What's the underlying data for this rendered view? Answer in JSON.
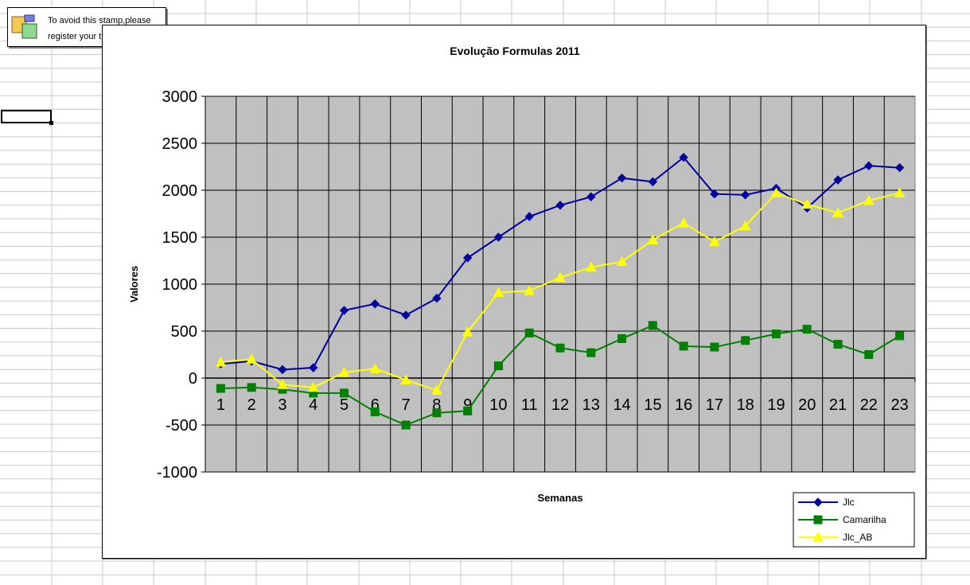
{
  "stamp": {
    "line1": "To avoid this stamp,please",
    "line2": "register your trial copy"
  },
  "colors": {
    "plot_background": "#c0c0c0",
    "sheet_grid": "#c8c8c8",
    "series_jlc": "#0000a0",
    "series_camarilha": "#008000",
    "series_jlc_ab": "#ffff00"
  },
  "chart_data": {
    "type": "line",
    "title": "Evolução Formulas 2011",
    "xlabel": "Semanas",
    "ylabel": "Valores",
    "ylim": [
      -1000,
      3000
    ],
    "yticks": [
      3000,
      2500,
      2000,
      1500,
      1000,
      500,
      0,
      -500,
      -1000
    ],
    "categories": [
      "1",
      "2",
      "3",
      "4",
      "5",
      "6",
      "7",
      "8",
      "9",
      "10",
      "11",
      "12",
      "13",
      "14",
      "15",
      "16",
      "17",
      "18",
      "19",
      "20",
      "21",
      "22",
      "23"
    ],
    "grid": true,
    "legend_position": "bottom-right",
    "series": [
      {
        "name": "Jlc",
        "marker": "diamond",
        "color": "#0000a0",
        "values": [
          150,
          180,
          90,
          110,
          720,
          790,
          670,
          850,
          1280,
          1500,
          1720,
          1840,
          1930,
          2130,
          2090,
          2350,
          1960,
          1950,
          2020,
          1810,
          2110,
          2260,
          2240
        ]
      },
      {
        "name": "Camarilha",
        "marker": "square",
        "color": "#008000",
        "values": [
          -110,
          -100,
          -120,
          -160,
          -160,
          -360,
          -500,
          -370,
          -350,
          130,
          480,
          320,
          270,
          420,
          560,
          340,
          330,
          400,
          470,
          520,
          360,
          250,
          450
        ]
      },
      {
        "name": "Jlc_AB",
        "marker": "triangle",
        "color": "#ffff00",
        "values": [
          170,
          200,
          -70,
          -100,
          60,
          100,
          -20,
          -130,
          490,
          910,
          930,
          1070,
          1180,
          1240,
          1470,
          1650,
          1450,
          1620,
          1970,
          1850,
          1760,
          1890,
          1970
        ]
      }
    ]
  }
}
